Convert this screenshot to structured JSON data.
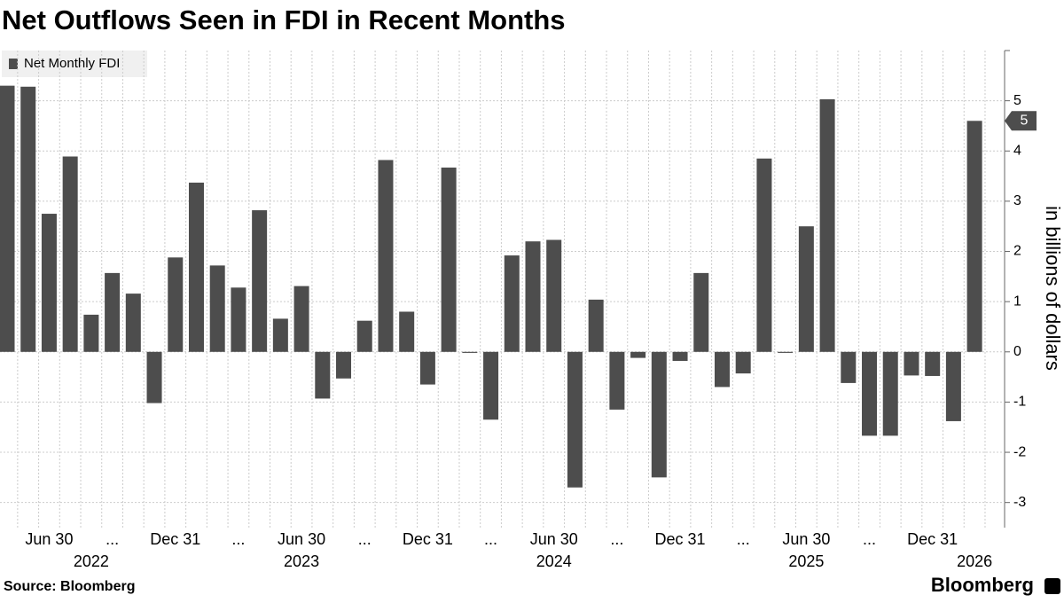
{
  "chart_data": {
    "type": "bar",
    "title": "Net Outflows Seen in FDI in Recent Months",
    "y_axis_label": "in billions of dollars",
    "source": "Source: Bloomberg",
    "brand": "Bloomberg",
    "series": [
      {
        "name": "Net Monthly FDI",
        "color": "#4d4d4d",
        "values": [
          5.3,
          5.28,
          2.75,
          3.89,
          0.74,
          1.57,
          1.16,
          -1.02,
          1.88,
          3.37,
          1.72,
          1.28,
          2.82,
          0.66,
          1.31,
          -0.93,
          -0.53,
          0.62,
          3.82,
          0.8,
          -0.65,
          3.67,
          -0.02,
          -1.35,
          1.92,
          2.2,
          2.23,
          -2.7,
          1.04,
          -1.15,
          -0.12,
          -2.5,
          -0.18,
          1.57,
          -0.7,
          -0.43,
          3.85,
          -0.02,
          2.5,
          5.03,
          -0.62,
          -1.67,
          -1.67,
          -0.47,
          -0.48,
          -1.38,
          4.6
        ],
        "value_labels": [
          null,
          null,
          null,
          null,
          null,
          null,
          null,
          null,
          null,
          null,
          null,
          null,
          null,
          null,
          null,
          null,
          null,
          null,
          null,
          null,
          null,
          null,
          null,
          null,
          null,
          null,
          null,
          null,
          null,
          null,
          null,
          null,
          null,
          null,
          null,
          null,
          null,
          null,
          null,
          null,
          null,
          null,
          null,
          null,
          null,
          null,
          "5"
        ]
      }
    ],
    "categories": [
      null,
      null,
      "Jun 30",
      null,
      null,
      "...",
      null,
      null,
      "Dec 31",
      null,
      null,
      "...",
      null,
      null,
      "Jun 30",
      null,
      null,
      "...",
      null,
      null,
      "Dec 31",
      null,
      null,
      "...",
      null,
      null,
      "Jun 30",
      null,
      null,
      "...",
      null,
      null,
      "Dec 31",
      null,
      null,
      "...",
      null,
      null,
      "Jun 30",
      null,
      null,
      "...",
      null,
      null,
      "Dec 31",
      null,
      null
    ],
    "category_groups": [
      null,
      null,
      null,
      null,
      "2022",
      null,
      null,
      null,
      null,
      null,
      null,
      null,
      null,
      null,
      "2023",
      null,
      null,
      null,
      null,
      null,
      null,
      null,
      null,
      null,
      null,
      null,
      "2024",
      null,
      null,
      null,
      null,
      null,
      null,
      null,
      null,
      null,
      null,
      null,
      "2025",
      null,
      null,
      null,
      null,
      null,
      null,
      null,
      "2026"
    ],
    "ylim": [
      -3.5,
      6
    ],
    "yticks": [
      -3,
      -2,
      -1,
      0,
      1,
      2,
      3,
      4,
      5
    ],
    "grid": true
  }
}
